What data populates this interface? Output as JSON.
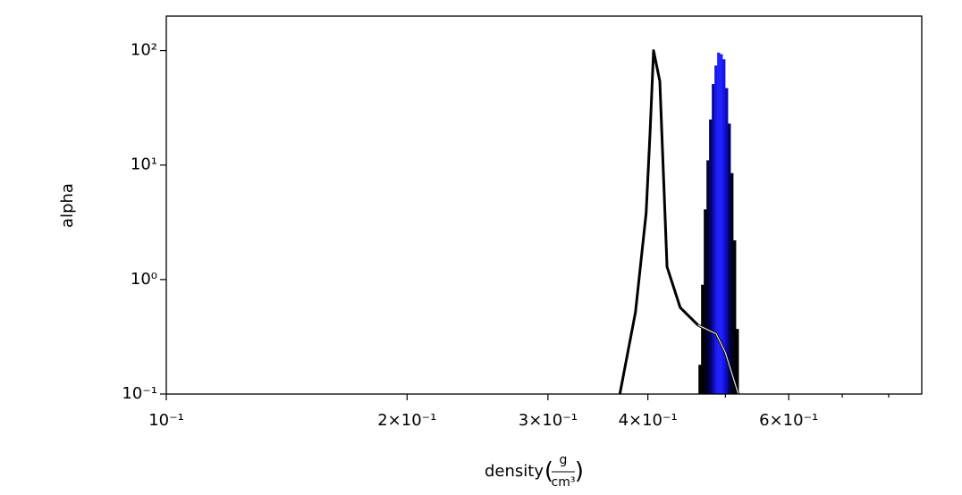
{
  "chart_data": {
    "type": "histogram",
    "xlabel": {
      "text": "density",
      "unit_numerator": "g",
      "unit_denominator": "cm³"
    },
    "ylabel": "alpha",
    "xscale": "log",
    "yscale": "log",
    "xlim": [
      0.1,
      0.88
    ],
    "ylim": [
      0.1,
      200
    ],
    "xticks": [
      {
        "value": 0.1,
        "label": "10⁻¹"
      },
      {
        "value": 0.2,
        "label": "2×10⁻¹"
      },
      {
        "value": 0.3,
        "label": "3×10⁻¹"
      },
      {
        "value": 0.4,
        "label": "4×10⁻¹"
      },
      {
        "value": 0.6,
        "label": "6×10⁻¹"
      }
    ],
    "xminorticks": [
      0.5,
      0.7,
      0.8
    ],
    "yticks": [
      {
        "value": 0.1,
        "label": "10⁻¹"
      },
      {
        "value": 1,
        "label": "10⁰"
      },
      {
        "value": 10,
        "label": "10¹"
      },
      {
        "value": 100,
        "label": "10²"
      }
    ],
    "bins": [
      0.4627,
      0.4662,
      0.4698,
      0.4735,
      0.4771,
      0.4808,
      0.4845,
      0.4883,
      0.492,
      0.4959,
      0.4997,
      0.5036,
      0.5075,
      0.5114,
      0.5154,
      0.5194
    ],
    "values": [
      0.18,
      0.9,
      4.1,
      11,
      25,
      51,
      74,
      96,
      93,
      84,
      47,
      23,
      8.5,
      2.2,
      0.37
    ],
    "bar_colors": [
      "#000000",
      "#000005",
      "#00000f",
      "#000033",
      "#000066",
      "#0a0aa0",
      "#1a1ae0",
      "#2020ff",
      "#2020ff",
      "#1515e8",
      "#0a0ab0",
      "#000060",
      "#000020",
      "#000008",
      "#000000"
    ],
    "lines": [
      {
        "color": "#000000",
        "width": 3,
        "x": [
          0.369,
          0.386,
          0.398,
          0.4025,
          0.4066,
          0.414,
          0.4227,
          0.439,
          0.462,
          0.487,
          0.5,
          0.519
        ],
        "values": [
          0.1,
          0.52,
          3.8,
          19,
          100,
          54,
          1.29,
          0.57,
          0.4,
          0.335,
          0.23,
          0.1
        ]
      },
      {
        "color": "#e6e6e6",
        "width": 1.2,
        "x": [
          0.462,
          0.487,
          0.5,
          0.519
        ],
        "values": [
          0.4,
          0.335,
          0.23,
          0.1
        ]
      }
    ]
  }
}
